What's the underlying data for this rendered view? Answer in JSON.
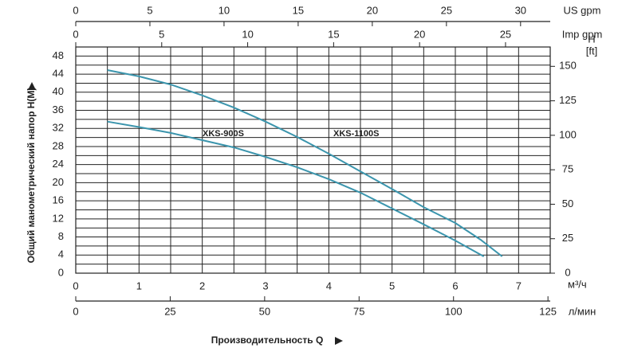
{
  "chart_data": {
    "type": "line",
    "y_label": "Общий манометрический напор H(M)",
    "x_label": "Производительность Q",
    "x_unit": "м³/ч",
    "xlim": [
      0,
      7.5
    ],
    "xticks": [
      0,
      1,
      2,
      3,
      4,
      5,
      6,
      7
    ],
    "ylim": [
      0,
      50
    ],
    "yticks": [
      0,
      4,
      8,
      12,
      16,
      20,
      24,
      28,
      32,
      36,
      40,
      44,
      48
    ],
    "y2_label": [
      "H",
      "[ft]"
    ],
    "y2lim": [
      0,
      164.04
    ],
    "y2ticks": [
      0,
      25,
      50,
      75,
      100,
      125,
      150
    ],
    "grid": true,
    "secondary_x_axes": [
      {
        "label": "US gpm",
        "position": "top",
        "xlim": [
          0,
          32
        ],
        "xticks": [
          0,
          5,
          10,
          15,
          20,
          25,
          30
        ]
      },
      {
        "label": "Imp gpm",
        "position": "top",
        "xlim": [
          0,
          27.6
        ],
        "xticks": [
          0,
          5,
          10,
          15,
          20,
          25
        ]
      },
      {
        "label": "л/мин",
        "position": "bottom",
        "xlim": [
          0,
          125.6
        ],
        "xticks": [
          0,
          25,
          50,
          75,
          100,
          125
        ]
      }
    ],
    "series": [
      {
        "name": "XKS-1100S",
        "color": "#3b95ad",
        "x": [
          0.5,
          1.0,
          1.5,
          2.0,
          2.5,
          3.0,
          3.5,
          4.0,
          4.5,
          5.0,
          5.5,
          6.0,
          6.4,
          6.74
        ],
        "values": [
          44.9,
          43.5,
          41.7,
          39.3,
          36.6,
          33.5,
          30.1,
          26.4,
          22.5,
          18.6,
          14.6,
          11.1,
          7.4,
          3.7
        ]
      },
      {
        "name": "XKS-900S",
        "color": "#3b95ad",
        "x": [
          0.5,
          1.0,
          1.5,
          2.0,
          2.5,
          3.0,
          3.5,
          4.0,
          4.5,
          5.0,
          5.5,
          6.0,
          6.45
        ],
        "values": [
          33.5,
          32.3,
          31.0,
          29.4,
          27.8,
          25.7,
          23.4,
          20.8,
          17.8,
          14.3,
          10.8,
          7.2,
          3.7
        ]
      }
    ]
  }
}
